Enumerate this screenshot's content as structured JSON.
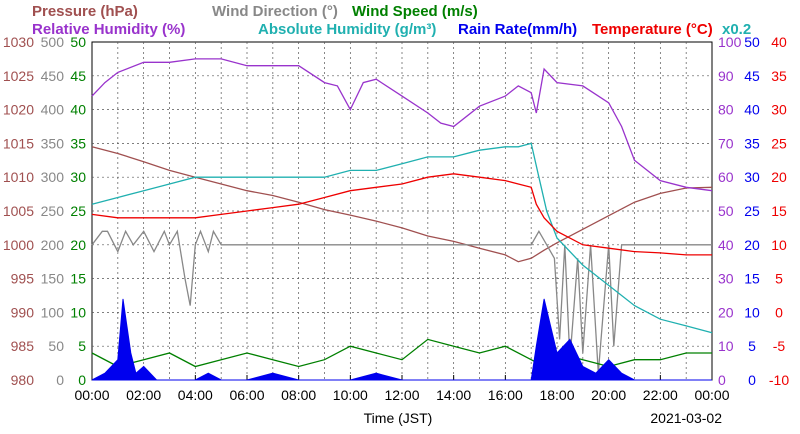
{
  "chart_data": {
    "type": "line",
    "title_lines": [
      [
        {
          "text": "Pressure (hPa)",
          "color": "#a05050"
        },
        {
          "text": "Wind Direction (°)",
          "color": "#888888"
        },
        {
          "text": "Wind Speed (m/s)",
          "color": "#008000"
        }
      ],
      [
        {
          "text": "Relative Humidity (%)",
          "color": "#9933cc"
        },
        {
          "text": "Absolute Humidity (g/m³)",
          "color": "#20b0b0"
        },
        {
          "text": "Rain Rate(mm/h)",
          "color": "#0000ee"
        },
        {
          "text": "Temperature (°C)",
          "color": "#ee0000"
        },
        {
          "text": "x0.2",
          "color": "#20b0b0"
        }
      ]
    ],
    "xlabel": "Time (JST)",
    "date": "2021-03-02",
    "x_ticks": [
      "00:00",
      "02:00",
      "04:00",
      "06:00",
      "08:00",
      "10:00",
      "12:00",
      "14:00",
      "16:00",
      "18:00",
      "20:00",
      "22:00",
      "00:00"
    ],
    "grid": true,
    "axes": [
      {
        "side": "left",
        "name": "Pressure (hPa)",
        "color": "#a05050",
        "ticks": [
          1030,
          1025,
          1020,
          1015,
          1010,
          1005,
          1000,
          995,
          990,
          985,
          980
        ],
        "ylim": [
          980,
          1030
        ]
      },
      {
        "side": "left",
        "name": "Wind Direction (°)",
        "color": "#888888",
        "ticks": [
          500,
          450,
          400,
          350,
          300,
          250,
          200,
          150,
          100,
          50,
          0
        ],
        "ylim": [
          0,
          500
        ]
      },
      {
        "side": "left",
        "name": "Wind Speed (m/s)",
        "color": "#008000",
        "ticks": [
          50,
          45,
          40,
          35,
          30,
          25,
          20,
          15,
          10,
          5,
          0
        ],
        "ylim": [
          0,
          50
        ]
      },
      {
        "side": "right",
        "name": "Relative Humidity (%)",
        "color": "#9933cc",
        "ticks": [
          100,
          90,
          80,
          70,
          60,
          50,
          40,
          30,
          20,
          10,
          0
        ],
        "ylim": [
          0,
          100
        ]
      },
      {
        "side": "right",
        "name": "Rain Rate(mm/h)",
        "color": "#0000ee",
        "ticks": [
          50,
          45,
          40,
          35,
          30,
          25,
          20,
          15,
          10,
          5,
          0
        ],
        "ylim": [
          0,
          50
        ]
      },
      {
        "side": "right",
        "name": "Temperature (°C)",
        "color": "#ee0000",
        "ticks": [
          40,
          35,
          30,
          25,
          20,
          15,
          10,
          5,
          0,
          -5,
          -10
        ],
        "ylim": [
          -10,
          40
        ]
      }
    ],
    "series": [
      {
        "name": "Pressure (hPa)",
        "axis": 0,
        "color": "#a05050",
        "x_hours": [
          0,
          1,
          2,
          3,
          4,
          5,
          6,
          7,
          8,
          9,
          10,
          11,
          12,
          13,
          14,
          15,
          16,
          16.5,
          17,
          17.5,
          18,
          19,
          20,
          21,
          22,
          23,
          24
        ],
        "values": [
          1014.5,
          1013.5,
          1012.3,
          1011,
          1010,
          1009,
          1008,
          1007.3,
          1006.3,
          1005.2,
          1004.4,
          1003.5,
          1002.5,
          1001.3,
          1000.5,
          999.5,
          998.5,
          997.5,
          998,
          999.2,
          1000.3,
          1002.3,
          1004.3,
          1006.3,
          1007.6,
          1008.4,
          1008.5
        ]
      },
      {
        "name": "Wind Direction (°)",
        "axis": 1,
        "color": "#888888",
        "x_hours": [
          0,
          0.4,
          0.6,
          1,
          1.3,
          1.6,
          2,
          2.4,
          2.8,
          3,
          3.3,
          3.6,
          3.8,
          4,
          4.2,
          4.5,
          4.7,
          5,
          6,
          7,
          8,
          9,
          10,
          11,
          12,
          13,
          14,
          15,
          16,
          16.5,
          17,
          17.3,
          17.6,
          17.9,
          18.1,
          18.3,
          18.5,
          18.8,
          19,
          19.3,
          19.6,
          20,
          20.2,
          20.5,
          21,
          22,
          23,
          24
        ],
        "values": [
          200,
          220,
          220,
          190,
          220,
          200,
          220,
          190,
          220,
          200,
          220,
          150,
          110,
          200,
          220,
          190,
          220,
          200,
          200,
          200,
          200,
          200,
          200,
          200,
          200,
          200,
          200,
          200,
          200,
          200,
          200,
          220,
          200,
          180,
          60,
          200,
          30,
          180,
          40,
          200,
          10,
          200,
          50,
          200,
          200,
          200,
          200,
          200
        ]
      },
      {
        "name": "Wind Speed (m/s)",
        "axis": 2,
        "color": "#008000",
        "x_hours": [
          0,
          1,
          2,
          3,
          4,
          5,
          6,
          7,
          8,
          9,
          10,
          11,
          12,
          13,
          14,
          15,
          16,
          17,
          17.5,
          18,
          19,
          20,
          21,
          22,
          23,
          24
        ],
        "values": [
          4,
          2,
          3,
          4,
          2,
          3,
          4,
          3,
          2,
          3,
          5,
          4,
          3,
          6,
          5,
          4,
          5,
          3,
          2,
          4,
          3,
          2,
          3,
          3,
          4,
          4
        ]
      },
      {
        "name": "Relative Humidity (%)",
        "axis": 3,
        "color": "#9933cc",
        "x_hours": [
          0,
          0.5,
          1,
          2,
          3,
          4,
          5,
          6,
          7,
          8,
          9,
          9.5,
          10,
          10.5,
          11,
          12,
          13,
          13.5,
          14,
          15,
          16,
          16.5,
          17,
          17.2,
          17.5,
          18,
          19,
          20,
          20.5,
          21,
          22,
          23,
          24
        ],
        "values": [
          84,
          88,
          91,
          94,
          94,
          95,
          95,
          93,
          93,
          93,
          88,
          87,
          80,
          88,
          89,
          84,
          79,
          76,
          75,
          81,
          84,
          87,
          85,
          79,
          92,
          88,
          87,
          82,
          75,
          65,
          59,
          57,
          56
        ]
      },
      {
        "name": "Absolute Humidity (g/m³)",
        "axis": 2,
        "color": "#20b0b0",
        "x_hours": [
          0,
          1,
          2,
          3,
          4,
          5,
          6,
          7,
          8,
          9,
          10,
          11,
          12,
          13,
          14,
          15,
          16,
          16.5,
          17,
          17.3,
          17.6,
          18,
          19,
          20,
          21,
          22,
          23,
          24
        ],
        "values": [
          26,
          27,
          28,
          29,
          30,
          30,
          30,
          30,
          30,
          30,
          31,
          31,
          32,
          33,
          33,
          34,
          34.5,
          34.5,
          35,
          30,
          25,
          21,
          17,
          14,
          11,
          9,
          8,
          7
        ]
      },
      {
        "name": "Rain Rate(mm/h)",
        "axis": 4,
        "color": "#0000ee",
        "x_hours": [
          0,
          0.5,
          1,
          1.2,
          1.5,
          1.7,
          2,
          2.5,
          3,
          4,
          4.5,
          5,
          6,
          7,
          8,
          9,
          10,
          11,
          12,
          13,
          14,
          15,
          16,
          17,
          17.2,
          17.5,
          18,
          18.5,
          19,
          19.5,
          20,
          20.5,
          21,
          22,
          23,
          24
        ],
        "values": [
          0,
          1,
          3,
          12,
          4,
          1,
          2,
          0,
          0,
          0,
          1,
          0,
          0,
          1,
          0,
          0,
          0,
          1,
          0,
          0,
          0,
          0,
          0,
          0,
          5,
          12,
          4,
          6,
          2,
          1,
          3,
          1,
          0,
          0,
          0,
          0
        ]
      },
      {
        "name": "Temperature (°C)",
        "axis": 5,
        "color": "#ee0000",
        "x_hours": [
          0,
          1,
          2,
          3,
          4,
          5,
          6,
          7,
          8,
          9,
          10,
          11,
          12,
          13,
          14,
          15,
          16,
          16.5,
          17,
          17.2,
          17.5,
          18,
          19,
          20,
          21,
          22,
          23,
          24
        ],
        "values": [
          14.5,
          14,
          14,
          14,
          14,
          14.5,
          15,
          15.5,
          16,
          17,
          18,
          18.5,
          19,
          20,
          20.5,
          20,
          19.5,
          19,
          18.5,
          16,
          14,
          12,
          10,
          9.5,
          9,
          8.8,
          8.5,
          8.5
        ]
      }
    ]
  }
}
